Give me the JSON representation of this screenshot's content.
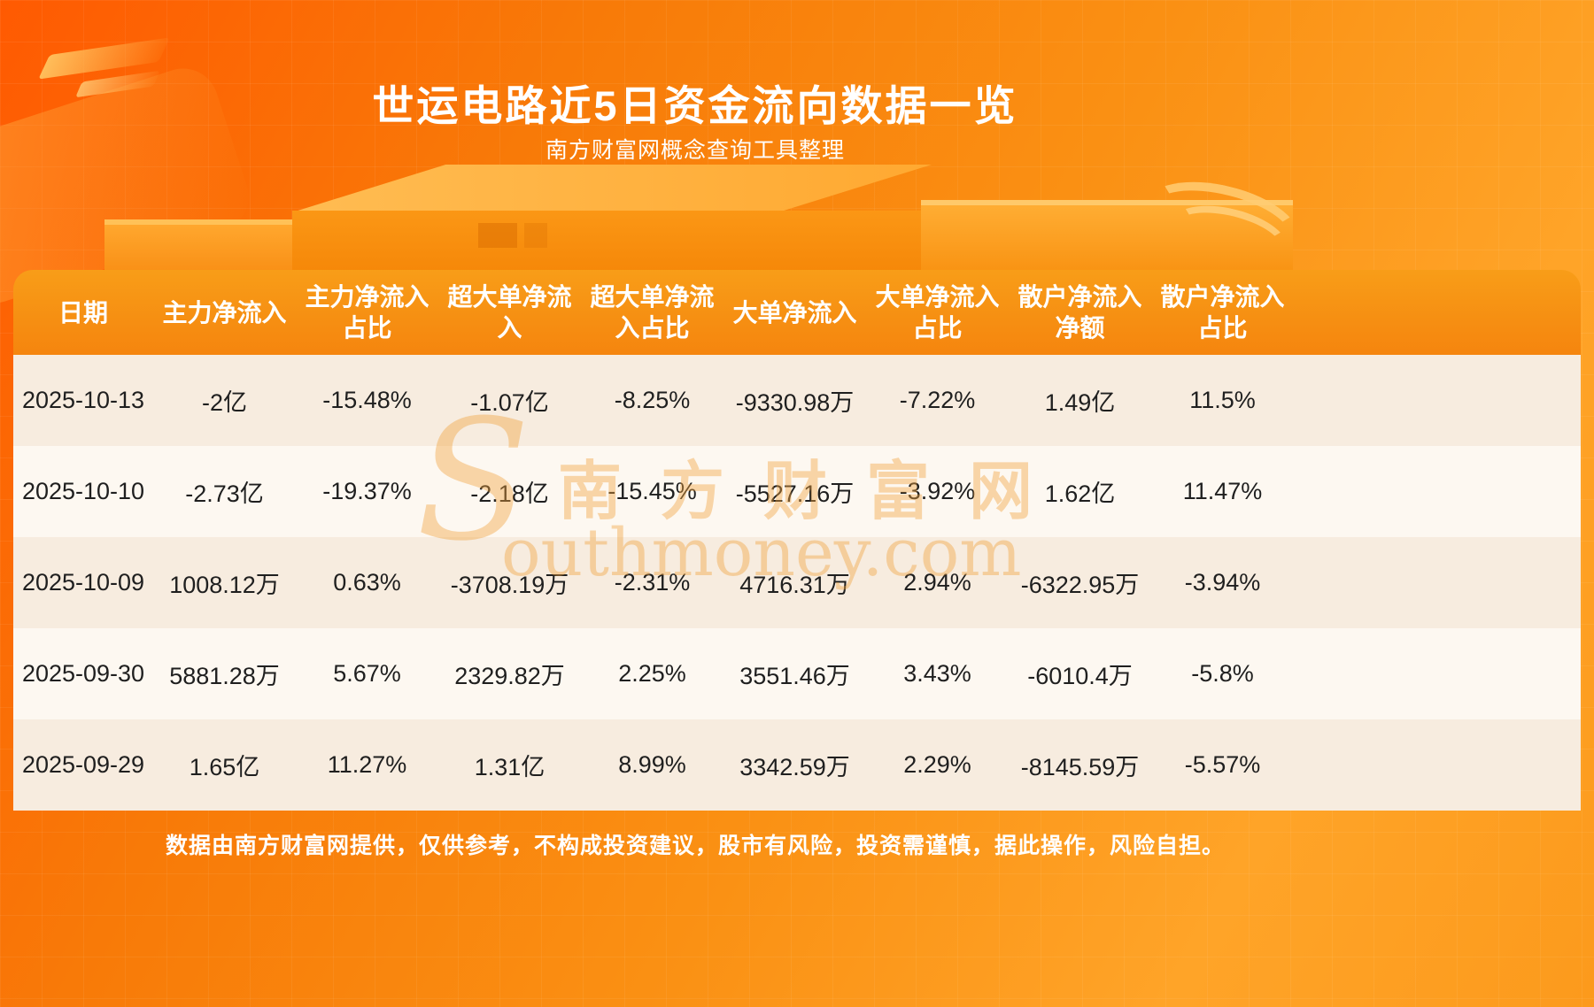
{
  "page": {
    "title": "世运电路近5日资金流向数据一览",
    "subtitle": "南方财富网概念查询工具整理",
    "footer": "数据由南方财富网提供，仅供参考，不构成投资建议，股市有风险，投资需谨慎，据此操作，风险自担。",
    "watermark": {
      "s": "S",
      "cn": "南方财富网",
      "en": "outhmoney.com"
    }
  },
  "colors": {
    "background_orange": "#f87a08",
    "header_orange": "#f5850e",
    "row_odd": "#f7ecdf",
    "row_even": "#fdf8f1",
    "title_text": "#ffffff",
    "cell_text": "#1f1f1f"
  },
  "table": {
    "headers": [
      {
        "label": "日期"
      },
      {
        "label": "主力净流入"
      },
      {
        "label": "主力净流入\n占比"
      },
      {
        "label": "超大单净流\n入"
      },
      {
        "label": "超大单净流\n入占比"
      },
      {
        "label": "大单净流入"
      },
      {
        "label": "大单净流入\n占比"
      },
      {
        "label": "散户净流入\n净额"
      },
      {
        "label": "散户净流入\n占比"
      }
    ]
  },
  "chart_data": {
    "type": "table",
    "title": "世运电路近5日资金流向数据一览",
    "columns": [
      "日期",
      "主力净流入",
      "主力净流入占比",
      "超大单净流入",
      "超大单净流入占比",
      "大单净流入",
      "大单净流入占比",
      "散户净流入净额",
      "散户净流入占比"
    ],
    "rows": [
      [
        "2025-10-13",
        "-2亿",
        "-15.48%",
        "-1.07亿",
        "-8.25%",
        "-9330.98万",
        "-7.22%",
        "1.49亿",
        "11.5%"
      ],
      [
        "2025-10-10",
        "-2.73亿",
        "-19.37%",
        "-2.18亿",
        "-15.45%",
        "-5527.16万",
        "-3.92%",
        "1.62亿",
        "11.47%"
      ],
      [
        "2025-10-09",
        "1008.12万",
        "0.63%",
        "-3708.19万",
        "-2.31%",
        "4716.31万",
        "2.94%",
        "-6322.95万",
        "-3.94%"
      ],
      [
        "2025-09-30",
        "5881.28万",
        "5.67%",
        "2329.82万",
        "2.25%",
        "3551.46万",
        "3.43%",
        "-6010.4万",
        "-5.8%"
      ],
      [
        "2025-09-29",
        "1.65亿",
        "11.27%",
        "1.31亿",
        "8.99%",
        "3342.59万",
        "2.29%",
        "-8145.59万",
        "-5.57%"
      ]
    ]
  }
}
